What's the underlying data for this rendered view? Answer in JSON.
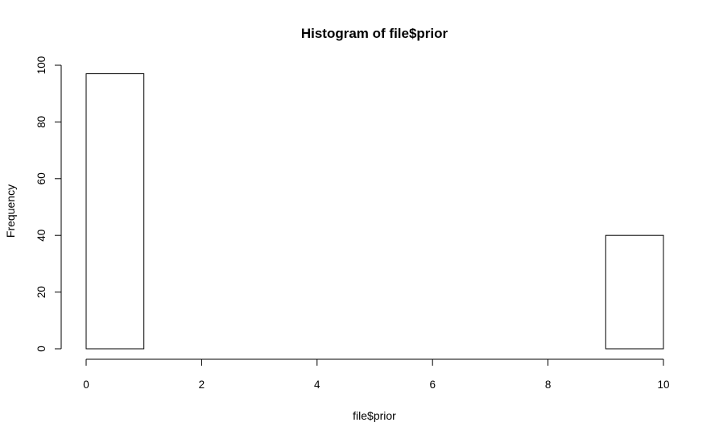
{
  "chart_data": {
    "type": "bar",
    "title": "Histogram of file$prior",
    "xlabel": "file$prior",
    "ylabel": "Frequency",
    "bins": [
      {
        "start": 0,
        "end": 1,
        "count": 97
      },
      {
        "start": 1,
        "end": 2,
        "count": 0
      },
      {
        "start": 2,
        "end": 3,
        "count": 0
      },
      {
        "start": 3,
        "end": 4,
        "count": 0
      },
      {
        "start": 4,
        "end": 5,
        "count": 0
      },
      {
        "start": 5,
        "end": 6,
        "count": 0
      },
      {
        "start": 6,
        "end": 7,
        "count": 0
      },
      {
        "start": 7,
        "end": 8,
        "count": 0
      },
      {
        "start": 8,
        "end": 9,
        "count": 0
      },
      {
        "start": 9,
        "end": 10,
        "count": 40
      }
    ],
    "xlim": [
      0,
      10
    ],
    "ylim": [
      0,
      100
    ],
    "x_ticks": [
      "0",
      "2",
      "4",
      "6",
      "8",
      "10"
    ],
    "y_ticks": [
      "0",
      "20",
      "40",
      "60",
      "80",
      "100"
    ],
    "grid": false,
    "bar_fill": "#ffffff",
    "bar_stroke": "#000000"
  }
}
